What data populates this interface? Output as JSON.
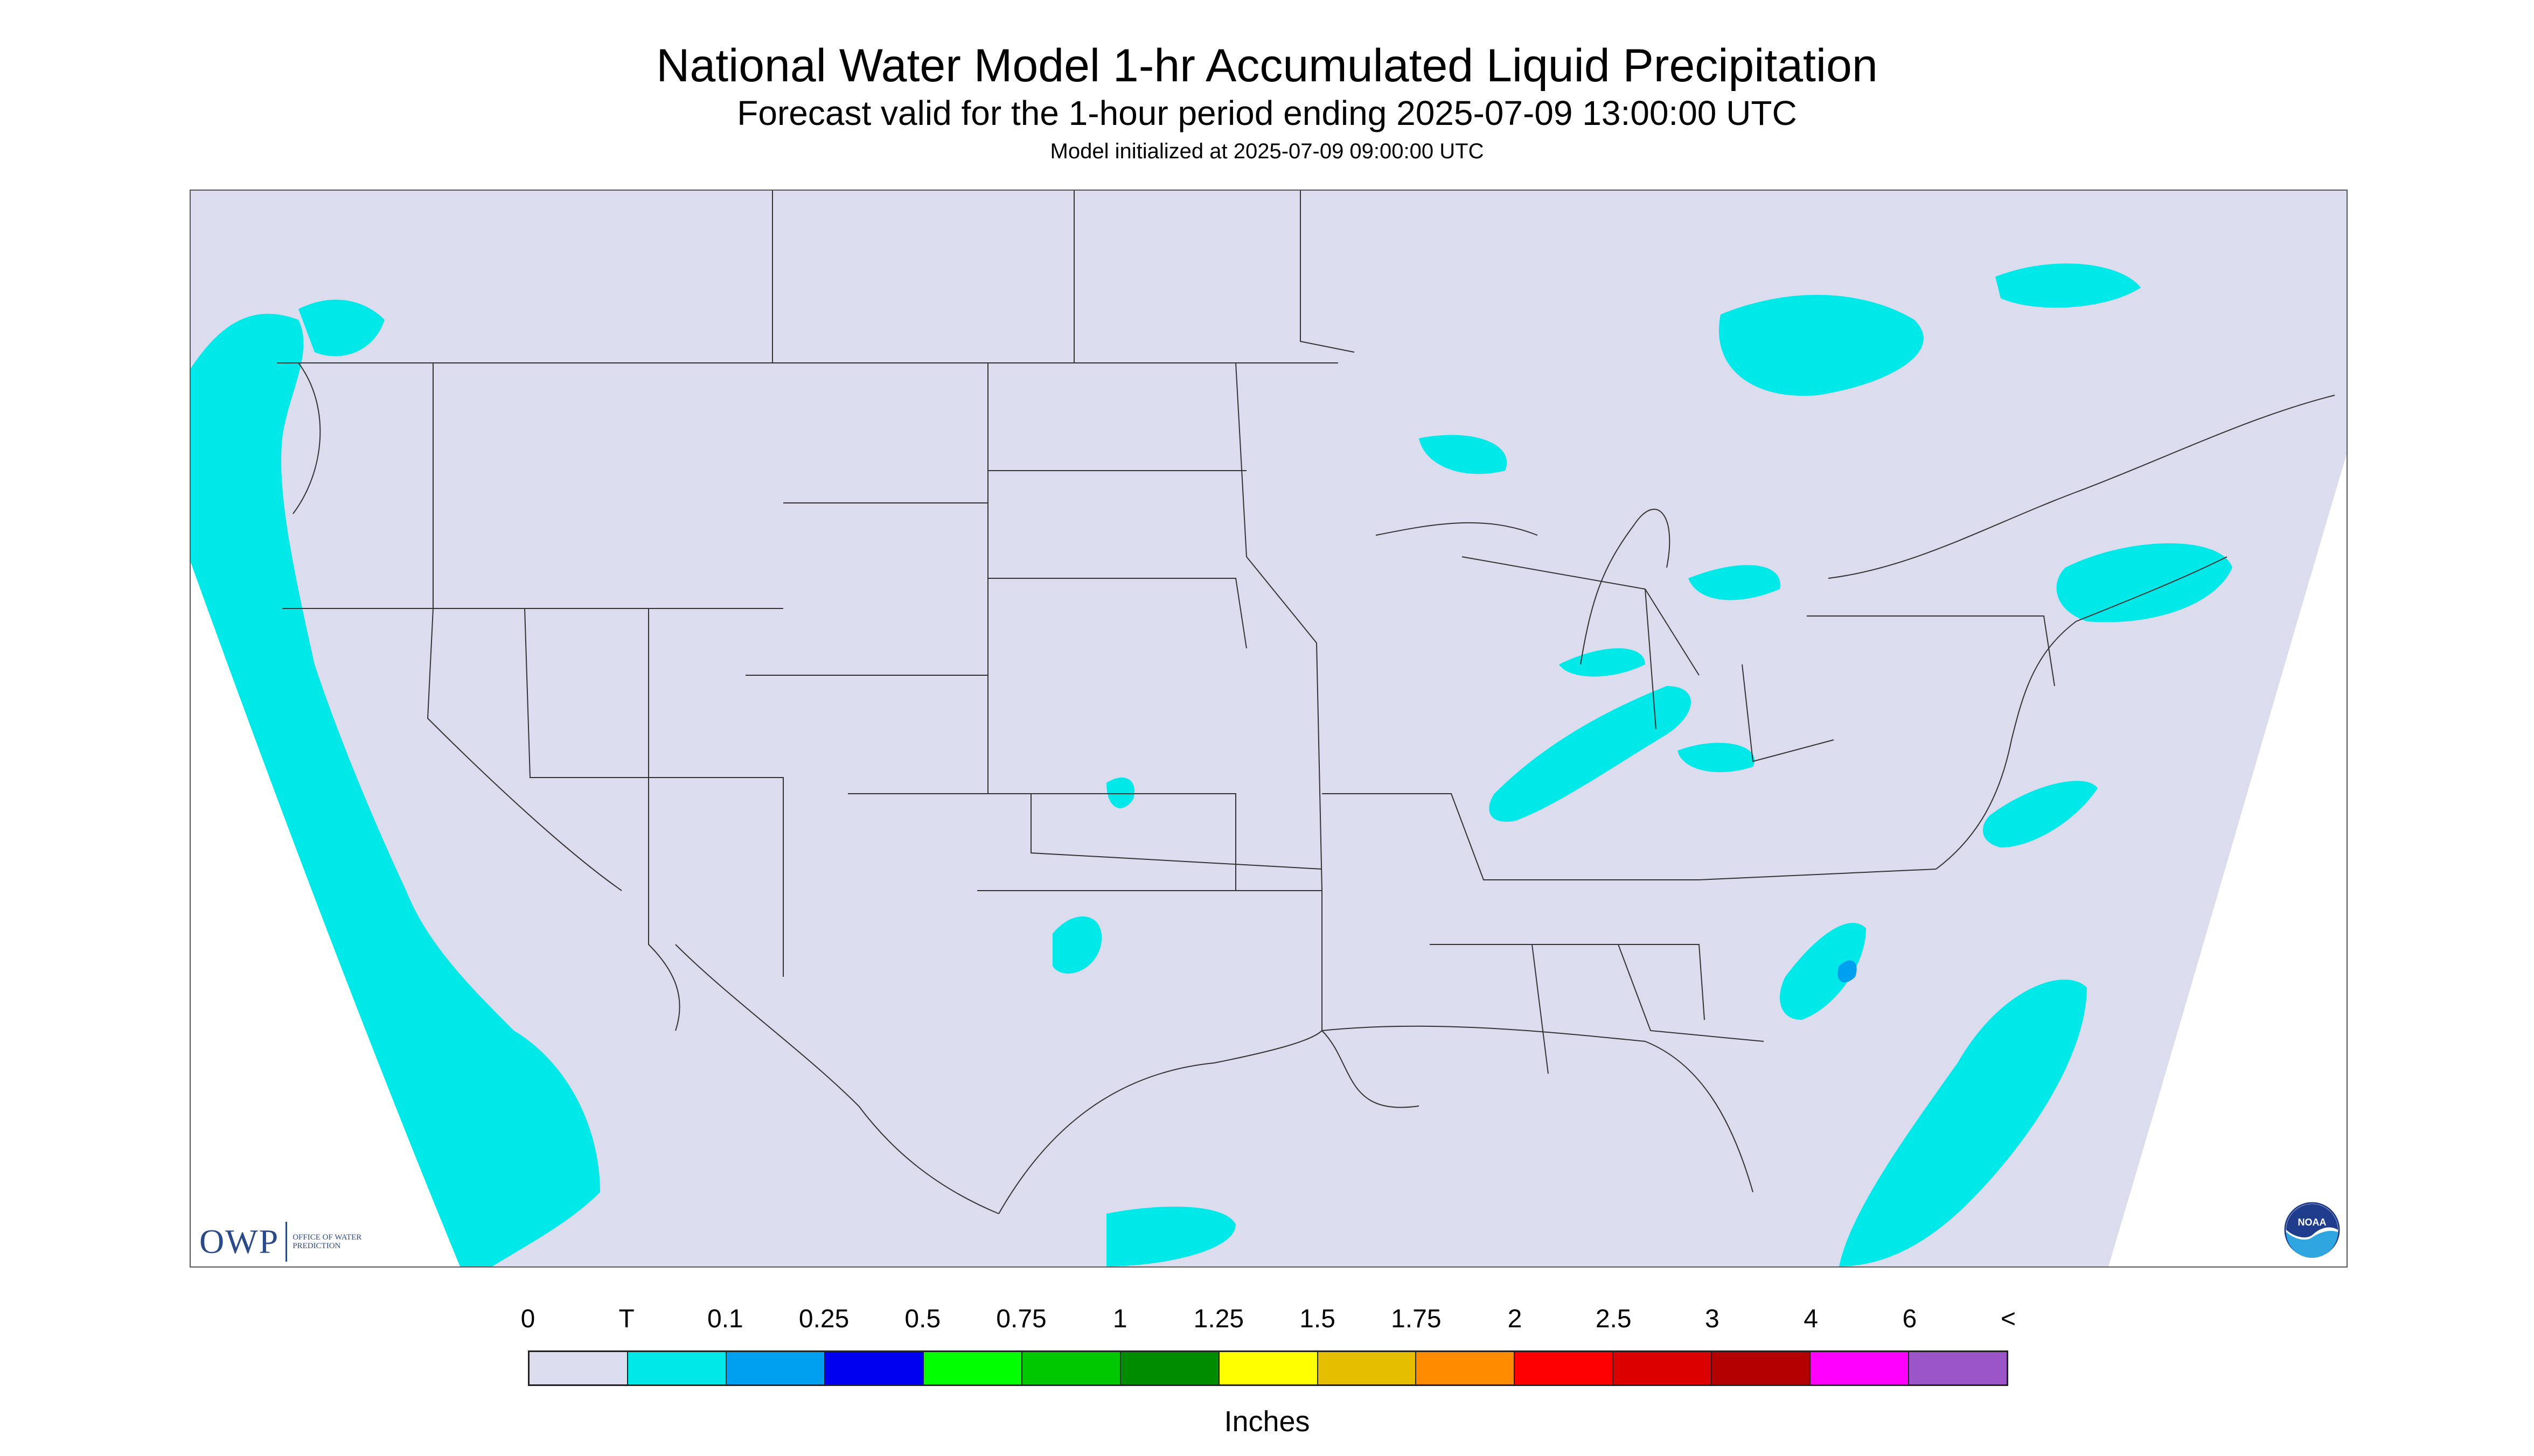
{
  "header": {
    "title": "National Water Model 1-hr Accumulated Liquid Precipitation",
    "subtitle": "Forecast valid for the 1-hour period ending 2025-07-09 13:00:00 UTC",
    "init": "Model initialized at 2025-07-09 09:00:00 UTC"
  },
  "logos": {
    "owp_mark": "OWP",
    "owp_text": "Office of Water Prediction",
    "noaa_text": "NOAA"
  },
  "legend": {
    "tick_labels": [
      "0",
      "T",
      "0.1",
      "0.25",
      "0.5",
      "0.75",
      "1",
      "1.25",
      "1.5",
      "1.75",
      "2",
      "2.5",
      "3",
      "4",
      "6",
      "<"
    ],
    "colors": [
      "#dcdcef",
      "#00e8e8",
      "#00a0f0",
      "#0000f0",
      "#00ff00",
      "#00c800",
      "#008c00",
      "#ffff00",
      "#e6be00",
      "#ff8c00",
      "#ff0000",
      "#dc0000",
      "#b40000",
      "#ff00ff",
      "#9b55c8"
    ],
    "units": "Inches"
  },
  "map": {
    "background_color": "#dcdcef",
    "outside_color": "#ffffff",
    "precip_color": "#00e8e8",
    "heavy_color": "#00a0f0",
    "line_color": "#333333"
  }
}
